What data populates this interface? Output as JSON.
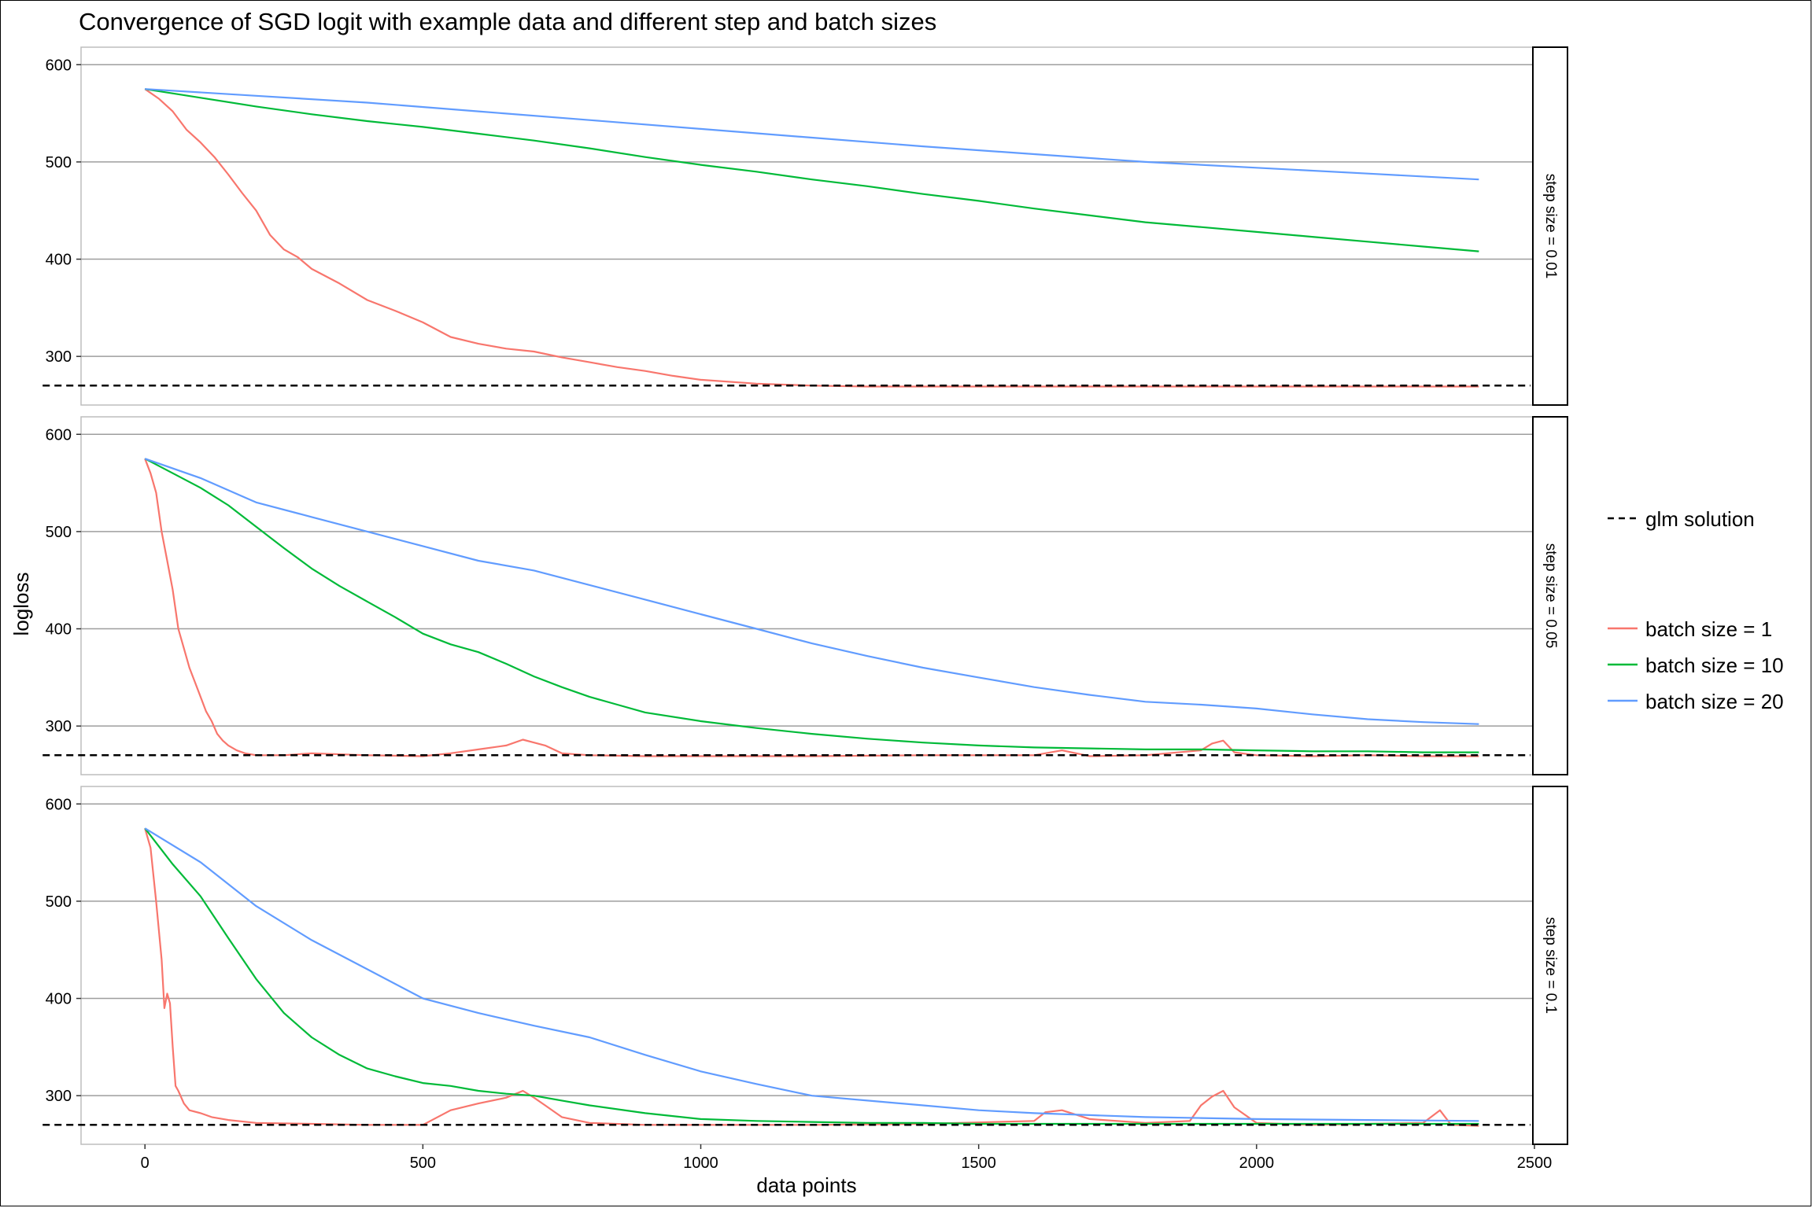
{
  "chart_data": {
    "type": "line",
    "title": "Convergence of SGD logit with example data and different step and batch sizes",
    "xlabel": "data points",
    "ylabel": "logloss",
    "xlim": [
      -115,
      2500
    ],
    "ylim": [
      250,
      618
    ],
    "x_ticks": [
      0,
      500,
      1000,
      1500,
      2000,
      2500
    ],
    "x_tick_labels": [
      "0",
      "500",
      "1000",
      "1500",
      "2000",
      "2500"
    ],
    "y_ticks": [
      300,
      400,
      500,
      600
    ],
    "y_tick_labels": [
      "300",
      "400",
      "500",
      "600"
    ],
    "reference_line": {
      "name": "glm solution",
      "value": 270,
      "style": "dashed",
      "color": "#000000"
    },
    "legend": {
      "position": "right",
      "reference_label": "glm solution",
      "entries": [
        {
          "label": "batch size = 1",
          "color": "#F8766D"
        },
        {
          "label": "batch size = 10",
          "color": "#00BA38"
        },
        {
          "label": "batch size = 20",
          "color": "#619CFF"
        }
      ]
    },
    "panels": [
      {
        "strip": "step size = 0.01",
        "series": [
          {
            "name": "batch size = 1",
            "color": "#F8766D",
            "x": [
              0,
              25,
              50,
              75,
              100,
              125,
              150,
              175,
              200,
              225,
              250,
              275,
              300,
              350,
              400,
              450,
              500,
              550,
              600,
              650,
              700,
              750,
              800,
              850,
              900,
              950,
              1000,
              1100,
              1200,
              1300,
              1500,
              1700,
              1900,
              2100,
              2300,
              2400
            ],
            "y": [
              575,
              565,
              552,
              533,
              520,
              505,
              487,
              468,
              450,
              425,
              410,
              402,
              390,
              375,
              358,
              347,
              335,
              320,
              313,
              308,
              305,
              299,
              294,
              289,
              285,
              280,
              276,
              272,
              270,
              269,
              269,
              269,
              269,
              269,
              269,
              269
            ]
          },
          {
            "name": "batch size = 10",
            "color": "#00BA38",
            "x": [
              0,
              100,
              200,
              300,
              400,
              500,
              600,
              700,
              800,
              900,
              1000,
              1100,
              1200,
              1300,
              1400,
              1500,
              1600,
              1700,
              1800,
              1900,
              2000,
              2100,
              2200,
              2300,
              2400
            ],
            "y": [
              575,
              566,
              557,
              549,
              542,
              536,
              529,
              522,
              514,
              505,
              497,
              490,
              482,
              475,
              467,
              460,
              452,
              445,
              438,
              433,
              428,
              423,
              418,
              413,
              408
            ]
          },
          {
            "name": "batch size = 20",
            "color": "#619CFF",
            "x": [
              0,
              200,
              400,
              600,
              800,
              1000,
              1200,
              1400,
              1600,
              1800,
              2000,
              2200,
              2400
            ],
            "y": [
              575,
              568,
              561,
              552,
              543,
              534,
              525,
              516,
              508,
              500,
              494,
              488,
              482
            ]
          }
        ]
      },
      {
        "strip": "step size = 0.05",
        "series": [
          {
            "name": "batch size = 1",
            "color": "#F8766D",
            "x": [
              0,
              10,
              20,
              30,
              40,
              50,
              60,
              70,
              80,
              90,
              100,
              110,
              120,
              130,
              140,
              150,
              165,
              180,
              200,
              250,
              300,
              400,
              500,
              550,
              600,
              650,
              680,
              700,
              720,
              750,
              800,
              900,
              1000,
              1200,
              1400,
              1600,
              1650,
              1700,
              1800,
              1900,
              1920,
              1940,
              1960,
              2000,
              2100,
              2200,
              2300,
              2400
            ],
            "y": [
              575,
              560,
              540,
              500,
              470,
              440,
              400,
              380,
              360,
              345,
              330,
              315,
              305,
              292,
              285,
              280,
              275,
              272,
              270,
              270,
              272,
              270,
              269,
              272,
              276,
              280,
              286,
              283,
              280,
              272,
              270,
              269,
              269,
              269,
              270,
              270,
              275,
              269,
              270,
              275,
              282,
              285,
              273,
              270,
              269,
              270,
              269,
              269
            ]
          },
          {
            "name": "batch size = 10",
            "color": "#00BA38",
            "x": [
              0,
              50,
              100,
              150,
              200,
              250,
              300,
              350,
              400,
              450,
              500,
              550,
              600,
              650,
              700,
              750,
              800,
              850,
              900,
              1000,
              1100,
              1200,
              1300,
              1400,
              1500,
              1600,
              1700,
              1800,
              1900,
              2000,
              2100,
              2200,
              2300,
              2400
            ],
            "y": [
              575,
              560,
              545,
              527,
              505,
              483,
              462,
              444,
              428,
              412,
              395,
              384,
              376,
              364,
              351,
              340,
              330,
              322,
              314,
              305,
              298,
              292,
              287,
              283,
              280,
              278,
              277,
              276,
              276,
              275,
              274,
              274,
              273,
              273
            ]
          },
          {
            "name": "batch size = 20",
            "color": "#619CFF",
            "x": [
              0,
              100,
              200,
              300,
              400,
              500,
              600,
              700,
              800,
              900,
              1000,
              1100,
              1200,
              1300,
              1400,
              1500,
              1600,
              1700,
              1800,
              1900,
              2000,
              2100,
              2200,
              2300,
              2400
            ],
            "y": [
              575,
              555,
              530,
              515,
              500,
              485,
              470,
              460,
              445,
              430,
              415,
              400,
              385,
              372,
              360,
              350,
              340,
              332,
              325,
              322,
              318,
              312,
              307,
              304,
              302
            ]
          }
        ]
      },
      {
        "strip": "step size = 0.1",
        "series": [
          {
            "name": "batch size = 1",
            "color": "#F8766D",
            "x": [
              0,
              10,
              20,
              30,
              35,
              40,
              45,
              50,
              55,
              60,
              70,
              80,
              100,
              120,
              150,
              200,
              300,
              400,
              500,
              550,
              600,
              650,
              680,
              700,
              720,
              750,
              800,
              900,
              1000,
              1200,
              1400,
              1600,
              1620,
              1650,
              1700,
              1800,
              1880,
              1900,
              1920,
              1940,
              1960,
              2000,
              2100,
              2200,
              2300,
              2330,
              2350,
              2400
            ],
            "y": [
              575,
              555,
              500,
              440,
              390,
              405,
              395,
              350,
              310,
              305,
              292,
              285,
              282,
              278,
              275,
              272,
              271,
              270,
              270,
              285,
              292,
              298,
              305,
              298,
              290,
              278,
              272,
              270,
              270,
              270,
              271,
              274,
              283,
              285,
              276,
              272,
              274,
              290,
              299,
              305,
              288,
              272,
              270,
              271,
              272,
              285,
              270,
              269
            ]
          },
          {
            "name": "batch size = 10",
            "color": "#00BA38",
            "x": [
              0,
              50,
              100,
              150,
              200,
              250,
              300,
              350,
              400,
              450,
              500,
              550,
              600,
              650,
              700,
              750,
              800,
              900,
              1000,
              1100,
              1200,
              1300,
              1400,
              1500,
              1600,
              1800,
              2000,
              2200,
              2400
            ],
            "y": [
              575,
              538,
              505,
              462,
              420,
              385,
              360,
              342,
              328,
              320,
              313,
              310,
              305,
              302,
              300,
              295,
              290,
              282,
              276,
              274,
              273,
              272,
              272,
              271,
              271,
              271,
              271,
              271,
              271
            ]
          },
          {
            "name": "batch size = 20",
            "color": "#619CFF",
            "x": [
              0,
              100,
              200,
              300,
              400,
              500,
              600,
              700,
              800,
              900,
              1000,
              1100,
              1200,
              1300,
              1400,
              1500,
              1600,
              1700,
              1800,
              1900,
              2000,
              2200,
              2400
            ],
            "y": [
              575,
              540,
              495,
              460,
              430,
              400,
              385,
              372,
              360,
              342,
              325,
              312,
              300,
              295,
              290,
              285,
              282,
              280,
              278,
              277,
              276,
              275,
              274
            ]
          }
        ]
      }
    ]
  }
}
